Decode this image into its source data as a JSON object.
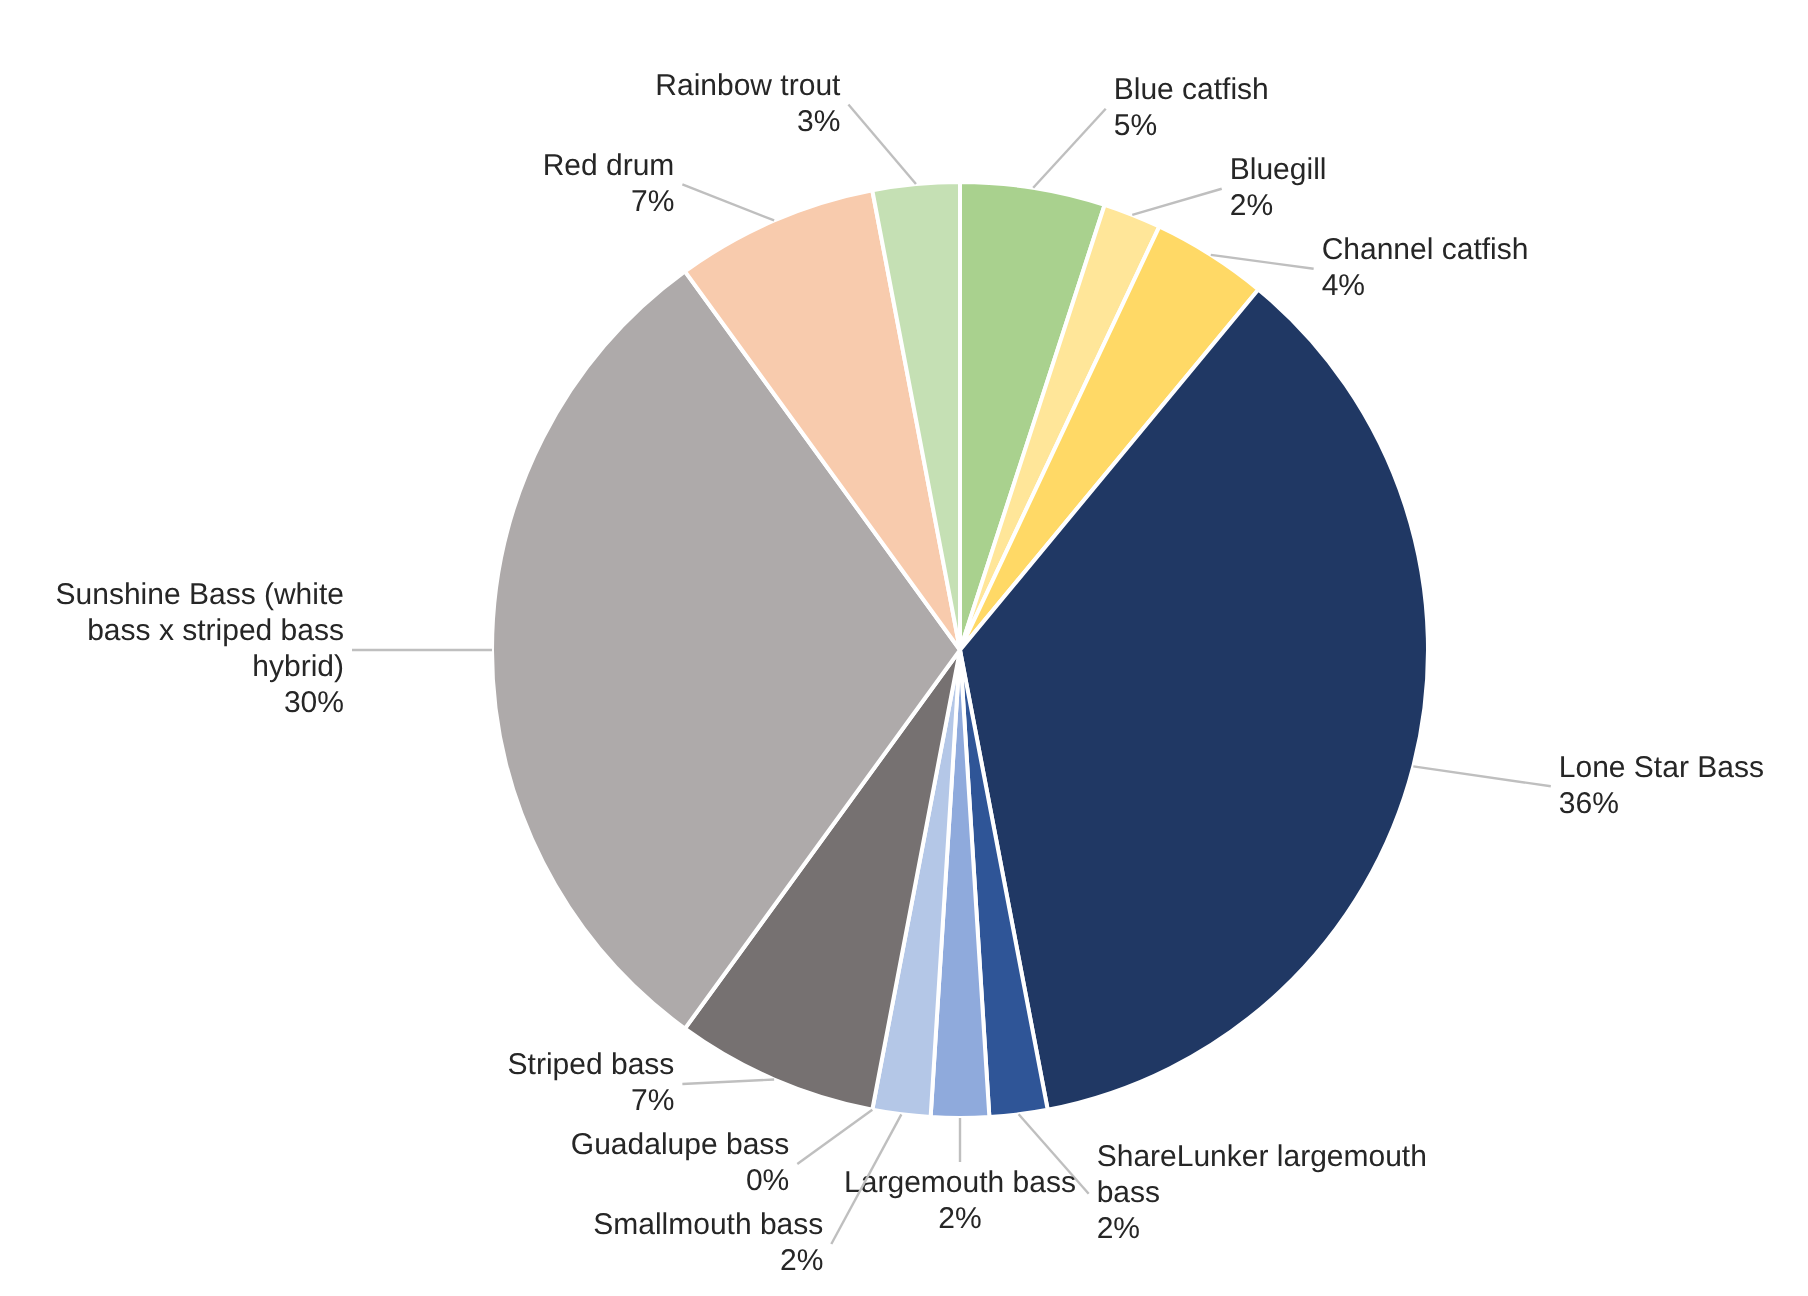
{
  "chart_data": {
    "type": "pie",
    "categories": [
      "Blue catfish",
      "Bluegill",
      "Channel catfish",
      "Lone Star Bass",
      "ShareLunker largemouth bass",
      "Largemouth bass",
      "Smallmouth bass",
      "Guadalupe bass",
      "Striped bass",
      "Sunshine Bass (white bass x striped bass hybrid)",
      "Red drum",
      "Rainbow trout"
    ],
    "values": [
      5,
      2,
      4,
      36,
      2,
      2,
      2,
      0,
      7,
      30,
      7,
      3
    ],
    "value_labels": [
      "5%",
      "2%",
      "4%",
      "36%",
      "2%",
      "2%",
      "2%",
      "0%",
      "7%",
      "30%",
      "7%",
      "3%"
    ],
    "colors": [
      "#a9d18e",
      "#ffe699",
      "#ffd966",
      "#203864",
      "#2f5597",
      "#8faadc",
      "#b4c7e7",
      "#dae3f3",
      "#767171",
      "#aeaaaa",
      "#f8cbad",
      "#c5e0b4"
    ]
  }
}
